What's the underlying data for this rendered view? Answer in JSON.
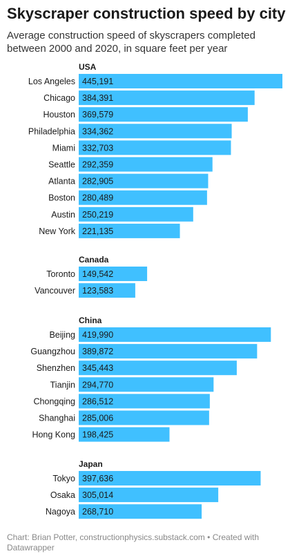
{
  "title": "Skyscraper construction speed by city",
  "subtitle": "Average construction speed of skyscrapers completed between 2000 and 2020, in square feet per year",
  "footer": {
    "chart_label": "Chart:",
    "chart_source": "Brian Potter, constructionphysics.substack.com",
    "separator": "•",
    "created_with": "Created with Datawrapper"
  },
  "colors": {
    "bar": "#40c0ff",
    "label_text": "#1a1a1a",
    "group_text": "#1a1a1a"
  },
  "chart_data": {
    "type": "bar",
    "orientation": "horizontal",
    "title": "Skyscraper construction speed by city",
    "subtitle": "Average construction speed of skyscrapers completed between 2000 and 2020, in square feet per year",
    "xlim": [
      0,
      445191
    ],
    "grid": false,
    "groups": [
      {
        "name": "USA",
        "categories": [
          "Los Angeles",
          "Chicago",
          "Houston",
          "Philadelphia",
          "Miami",
          "Seattle",
          "Atlanta",
          "Boston",
          "Austin",
          "New York"
        ],
        "values": [
          445191,
          384391,
          369579,
          334362,
          332703,
          292359,
          282905,
          280489,
          250219,
          221135
        ],
        "labels": [
          "445,191",
          "384,391",
          "369,579",
          "334,362",
          "332,703",
          "292,359",
          "282,905",
          "280,489",
          "250,219",
          "221,135"
        ]
      },
      {
        "name": "Canada",
        "categories": [
          "Toronto",
          "Vancouver"
        ],
        "values": [
          149542,
          123583
        ],
        "labels": [
          "149,542",
          "123,583"
        ]
      },
      {
        "name": "China",
        "categories": [
          "Beijing",
          "Guangzhou",
          "Shenzhen",
          "Tianjin",
          "Chongqing",
          "Shanghai",
          "Hong Kong"
        ],
        "values": [
          419990,
          389872,
          345443,
          294770,
          286512,
          285006,
          198425
        ],
        "labels": [
          "419,990",
          "389,872",
          "345,443",
          "294,770",
          "286,512",
          "285,006",
          "198,425"
        ]
      },
      {
        "name": "Japan",
        "categories": [
          "Tokyo",
          "Osaka",
          "Nagoya"
        ],
        "values": [
          397636,
          305014,
          268710
        ],
        "labels": [
          "397,636",
          "305,014",
          "268,710"
        ]
      }
    ]
  }
}
